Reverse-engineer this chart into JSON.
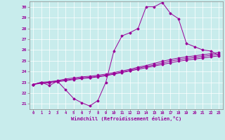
{
  "xlabel": "Windchill (Refroidissement éolien,°C)",
  "background_color": "#c8ecec",
  "line_color": "#990099",
  "grid_color": "#ffffff",
  "x": [
    0,
    1,
    2,
    3,
    4,
    5,
    6,
    7,
    8,
    9,
    10,
    11,
    12,
    13,
    14,
    15,
    16,
    17,
    18,
    19,
    20,
    21,
    22,
    23
  ],
  "line1": [
    22.8,
    23.0,
    22.7,
    23.1,
    22.3,
    21.5,
    21.1,
    20.8,
    21.3,
    23.0,
    25.9,
    27.3,
    27.6,
    28.0,
    30.0,
    30.0,
    30.4,
    29.4,
    28.9,
    26.6,
    26.3,
    26.0,
    25.9,
    25.5
  ],
  "line2": [
    22.8,
    23.0,
    23.05,
    23.15,
    23.3,
    23.4,
    23.5,
    23.55,
    23.65,
    23.75,
    23.9,
    24.05,
    24.2,
    24.4,
    24.55,
    24.75,
    24.95,
    25.1,
    25.25,
    25.35,
    25.45,
    25.55,
    25.65,
    25.75
  ],
  "line3": [
    22.8,
    22.95,
    23.0,
    23.1,
    23.2,
    23.3,
    23.4,
    23.45,
    23.55,
    23.65,
    23.8,
    23.95,
    24.1,
    24.3,
    24.45,
    24.6,
    24.8,
    24.95,
    25.1,
    25.2,
    25.3,
    25.4,
    25.5,
    25.6
  ],
  "line4": [
    22.8,
    22.9,
    22.95,
    23.05,
    23.15,
    23.25,
    23.35,
    23.4,
    23.5,
    23.6,
    23.75,
    23.9,
    24.05,
    24.2,
    24.35,
    24.5,
    24.65,
    24.8,
    24.95,
    25.05,
    25.15,
    25.25,
    25.35,
    25.45
  ],
  "ylim": [
    20.5,
    30.5
  ],
  "xlim": [
    -0.5,
    23.5
  ],
  "yticks": [
    21,
    22,
    23,
    24,
    25,
    26,
    27,
    28,
    29,
    30
  ],
  "xticks": [
    0,
    1,
    2,
    3,
    4,
    5,
    6,
    7,
    8,
    9,
    10,
    11,
    12,
    13,
    14,
    15,
    16,
    17,
    18,
    19,
    20,
    21,
    22,
    23
  ]
}
